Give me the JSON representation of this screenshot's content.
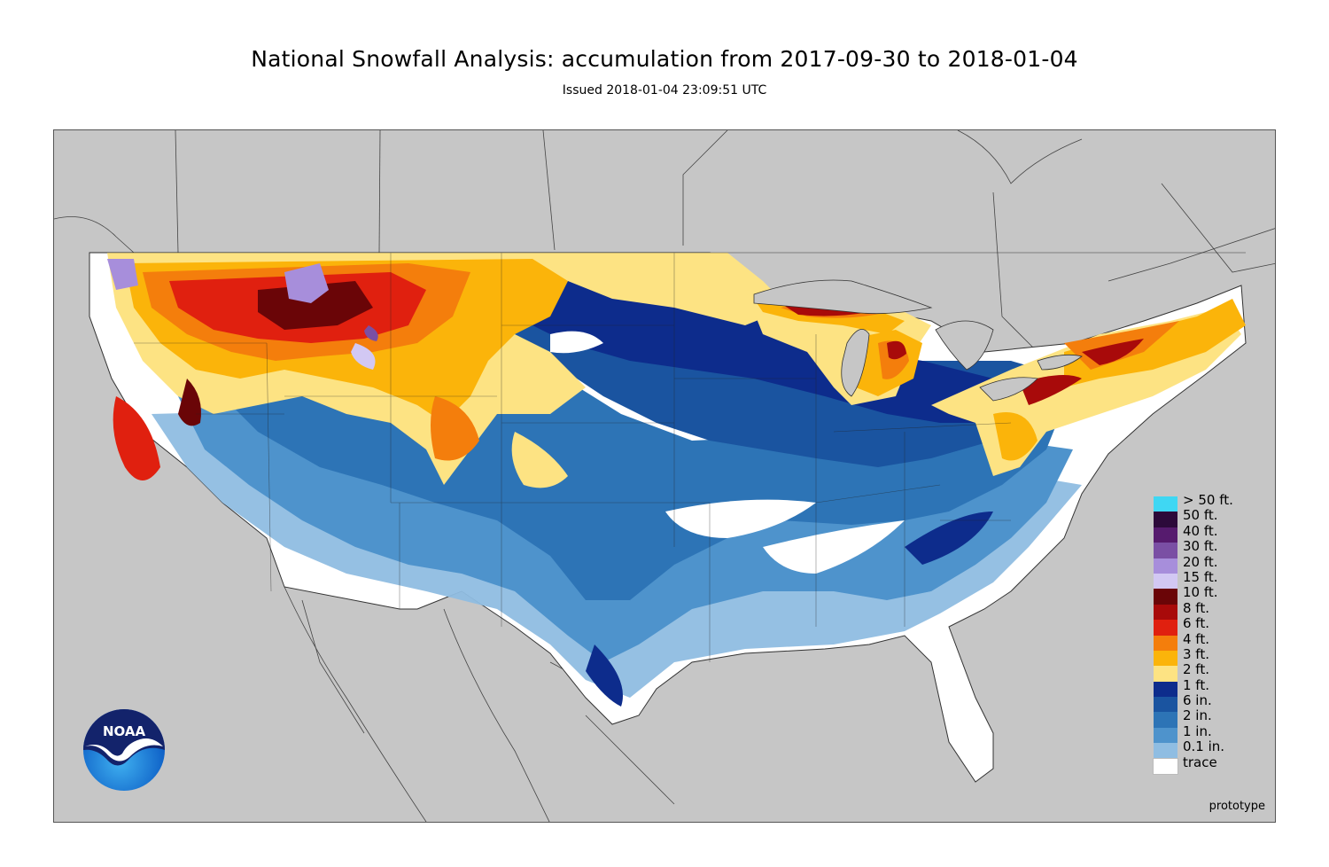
{
  "header": {
    "title": "National Snowfall Analysis: accumulation from 2017-09-30 to 2018-01-04",
    "subtitle": "Issued 2018-01-04 23:09:51 UTC"
  },
  "footer": {
    "note": "prototype"
  },
  "logo": {
    "text": "NOAA",
    "icon": "noaa-logo-icon"
  },
  "colors": {
    "background": "#c6c6c6",
    "land_outside": "#c6c6c6"
  },
  "legend": {
    "items": [
      {
        "label": "> 50 ft.",
        "color": "#3fd7f3"
      },
      {
        "label": "50 ft.",
        "color": "#2c0a3a"
      },
      {
        "label": "40 ft.",
        "color": "#561b6e"
      },
      {
        "label": "30 ft.",
        "color": "#7a4fa4"
      },
      {
        "label": "20 ft.",
        "color": "#a78edb"
      },
      {
        "label": "15 ft.",
        "color": "#d2c8f3"
      },
      {
        "label": "10 ft.",
        "color": "#6a0507"
      },
      {
        "label": "8 ft.",
        "color": "#a80a0a"
      },
      {
        "label": "6 ft.",
        "color": "#e0200f"
      },
      {
        "label": "4 ft.",
        "color": "#f47e0c"
      },
      {
        "label": "3 ft.",
        "color": "#fbb40a"
      },
      {
        "label": "2 ft.",
        "color": "#fde383"
      },
      {
        "label": "1 ft.",
        "color": "#0d2c8c"
      },
      {
        "label": "6 in.",
        "color": "#1a54a0"
      },
      {
        "label": "2 in.",
        "color": "#2d74b6"
      },
      {
        "label": "1 in.",
        "color": "#4e93cc"
      },
      {
        "label": "0.1 in.",
        "color": "#8fbde2"
      },
      {
        "label": "trace",
        "color": "#ffffff"
      }
    ]
  }
}
